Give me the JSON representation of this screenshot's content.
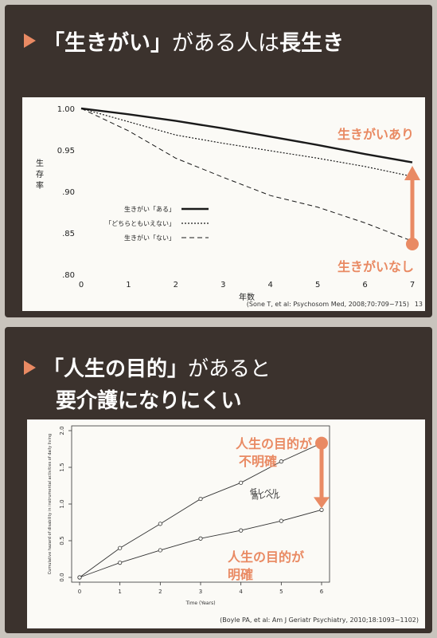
{
  "section1": {
    "title_prefix": "「生きがい」",
    "title_middle": "がある人は",
    "title_suffix": "長生き",
    "citation": "(Sone T, et al: Psychosom Med, 2008;70:709−715)",
    "page_number": "13",
    "callout_top": "生きがいあり",
    "callout_bottom": "生きがいなし"
  },
  "section2": {
    "title_line1_prefix": "「人生の目的」",
    "title_line1_suffix": "があると",
    "title_line2": "要介護になりにくい",
    "citation": "(Boyle PA, et al: Am J Geriatr Psychiatry, 2010;18:1093−1102)",
    "callout_top": [
      "人生の目的が",
      "不明確"
    ],
    "callout_bottom": [
      "人生の目的が",
      "明確"
    ]
  },
  "colors": {
    "accent": "#e98a63",
    "panel": "#3b322d"
  },
  "chart_data": [
    {
      "type": "line",
      "title": "",
      "xlabel": "年数",
      "ylabel": "生存率",
      "xlim": [
        0,
        7
      ],
      "ylim": [
        0.8,
        1.0
      ],
      "x_ticks": [
        "0",
        "1",
        "2",
        "3",
        "4",
        "5",
        "6",
        "7"
      ],
      "y_ticks": [
        "1.00",
        "0.95",
        ".90",
        ".85",
        ".80"
      ],
      "x": [
        0,
        1,
        2,
        3,
        4,
        5,
        6,
        7
      ],
      "series": [
        {
          "name": "生きがい「ある」",
          "style": "solid",
          "values": [
            1.0,
            0.993,
            0.985,
            0.976,
            0.966,
            0.956,
            0.945,
            0.935
          ]
        },
        {
          "name": "「どちらともいえない」",
          "style": "dotted",
          "values": [
            1.0,
            0.984,
            0.968,
            0.958,
            0.949,
            0.94,
            0.93,
            0.918
          ]
        },
        {
          "name": "生きがい「ない」",
          "style": "dashed",
          "values": [
            1.0,
            0.973,
            0.94,
            0.917,
            0.895,
            0.881,
            0.862,
            0.84
          ]
        }
      ],
      "legend": "bottom-left"
    },
    {
      "type": "line",
      "title": "",
      "xlabel": "Time (Years)",
      "ylabel": "Cumulative hazard of disability in instrumental activities of daily living",
      "xlim": [
        0,
        6
      ],
      "ylim": [
        0,
        2.0
      ],
      "x_ticks": [
        "0",
        "1",
        "2",
        "3",
        "4",
        "5",
        "6"
      ],
      "y_ticks": [
        "0.0",
        "0.5",
        "1.0",
        "1.5",
        "2.0"
      ],
      "x": [
        0,
        1,
        2,
        3,
        4,
        5,
        6
      ],
      "series": [
        {
          "name": "低レベル",
          "values": [
            0.0,
            0.4,
            0.73,
            1.07,
            1.29,
            1.58,
            1.83
          ]
        },
        {
          "name": "高レベル",
          "values": [
            0.0,
            0.2,
            0.37,
            0.53,
            0.64,
            0.77,
            0.92
          ]
        }
      ]
    }
  ]
}
